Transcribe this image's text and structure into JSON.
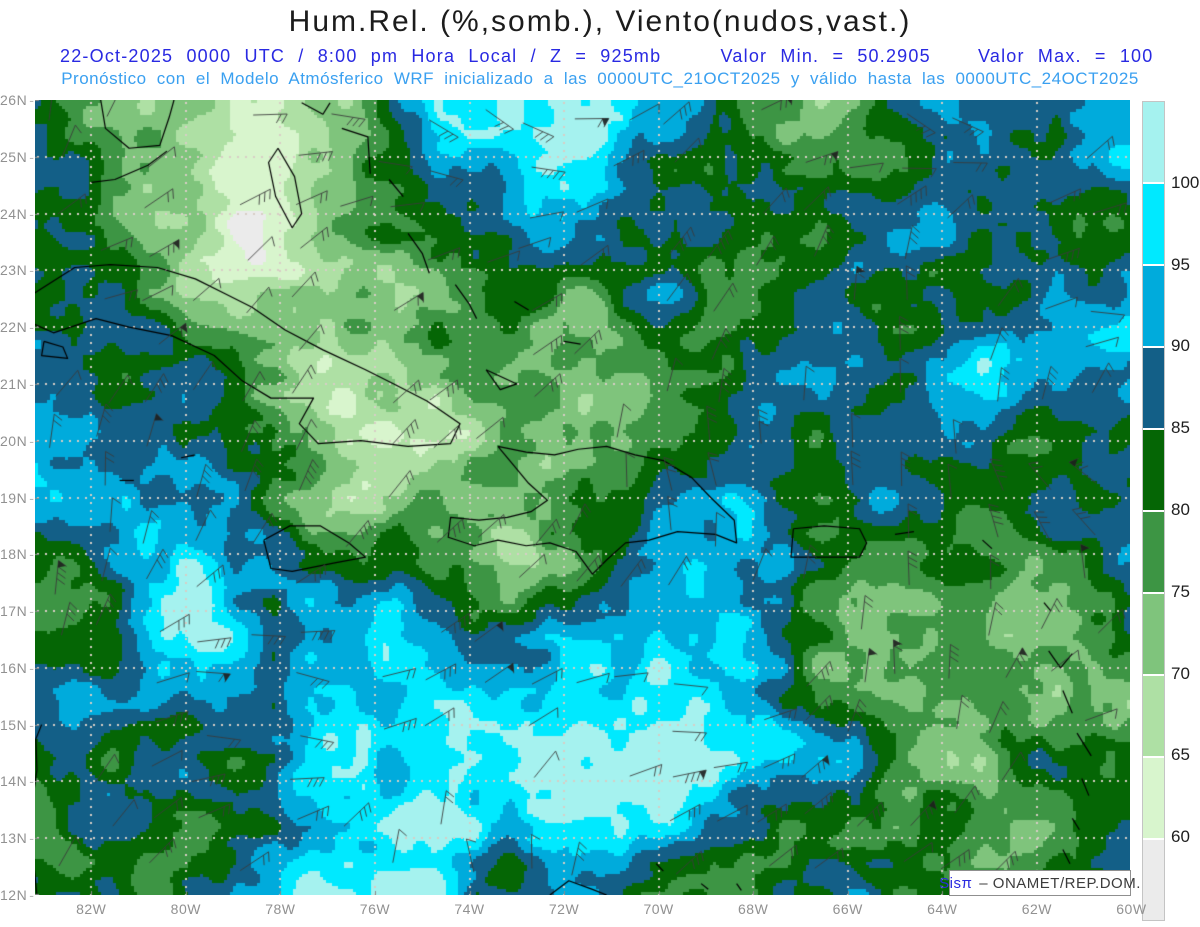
{
  "header": {
    "title": "Hum.Rel. (%,somb.), Viento(nudos,vast.)",
    "datetime_line": "22-Oct-2025  0000 UTC / 8:00 pm Hora Local / Z = 925mb",
    "valor_min_label": "Valor Min. = 50.2905",
    "valor_max_label": "Valor Max. = 100",
    "model_line": "Pronóstico con el Modelo Atmósferico WRF inicializado a las 0000UTC_21OCT2025 y válido hasta las 0000UTC_24OCT2025"
  },
  "map": {
    "lat_tick_labels": [
      "26N",
      "25N",
      "24N",
      "23N",
      "22N",
      "21N",
      "20N",
      "19N",
      "18N",
      "17N",
      "16N",
      "15N",
      "14N",
      "13N",
      "12N"
    ],
    "lon_tick_labels": [
      "82W",
      "80W",
      "78W",
      "76W",
      "74W",
      "72W",
      "70W",
      "68W",
      "66W",
      "64W",
      "62W",
      "60W"
    ],
    "value_min": 50.2905,
    "value_max": 100,
    "pressure_level": "925mb"
  },
  "colorbar": {
    "tick_labels": [
      "100",
      "95",
      "90",
      "85",
      "80",
      "75",
      "70",
      "65",
      "60"
    ],
    "colors_top_to_bottom": [
      "#a5f2ef",
      "#00e9ff",
      "#00abdc",
      "#135f87",
      "#056605",
      "#3d9544",
      "#7fc47c",
      "#aee0a4",
      "#d8f5cd",
      "#ebebeb"
    ]
  },
  "watermark": {
    "brand": "Sisπ",
    "text": "– ONAMET/REP.DOM."
  }
}
